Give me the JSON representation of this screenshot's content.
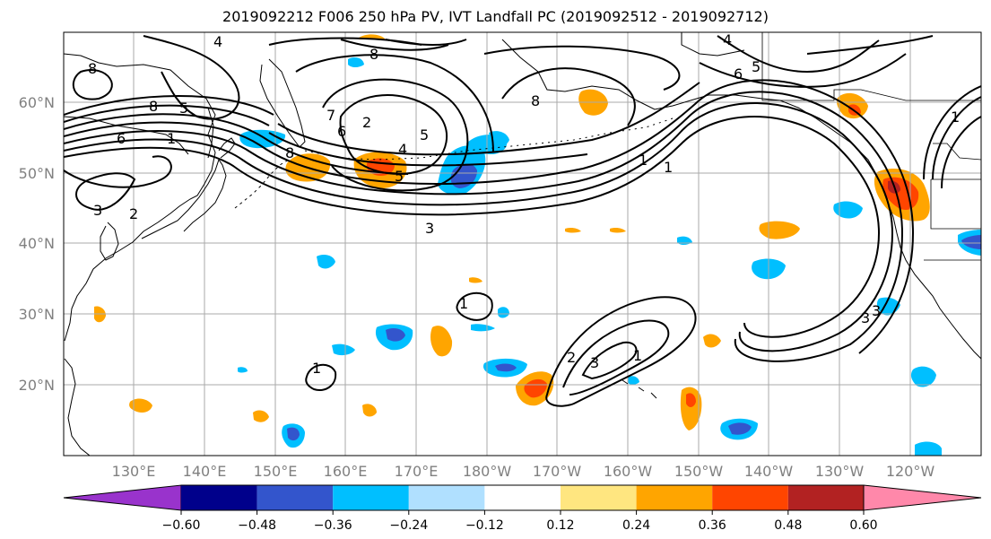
{
  "title": "2019092212 F006 250 hPa PV, IVT Landfall PC (2019092512 - 2019092712)",
  "map": {
    "lat_labels": [
      "60°N",
      "50°N",
      "40°N",
      "30°N",
      "20°N"
    ],
    "lon_labels": [
      "130°E",
      "140°E",
      "150°E",
      "160°E",
      "170°E",
      "180°W",
      "170°W",
      "160°W",
      "150°W",
      "140°W",
      "130°W",
      "120°W"
    ],
    "contour_labels": [
      "7",
      "8",
      "6",
      "5",
      "1",
      "4",
      "8",
      "8",
      "7",
      "6",
      "5",
      "4",
      "5",
      "2",
      "8",
      "4",
      "1",
      "3",
      "3",
      "5",
      "8",
      "6",
      "1",
      "1",
      "3",
      "1",
      "2",
      "3",
      "2",
      "1",
      "3",
      "1"
    ]
  },
  "colorbar": {
    "ticks": [
      "−0.60",
      "−0.48",
      "−0.36",
      "−0.24",
      "−0.12",
      "0.12",
      "0.24",
      "0.36",
      "0.48",
      "0.60"
    ],
    "colors": [
      "#9933cc",
      "#00008b",
      "#3355cc",
      "#00bfff",
      "#b0e0ff",
      "#ffffff",
      "#ffe680",
      "#ffa500",
      "#ff4500",
      "#b22222",
      "#ff88aa"
    ]
  }
}
